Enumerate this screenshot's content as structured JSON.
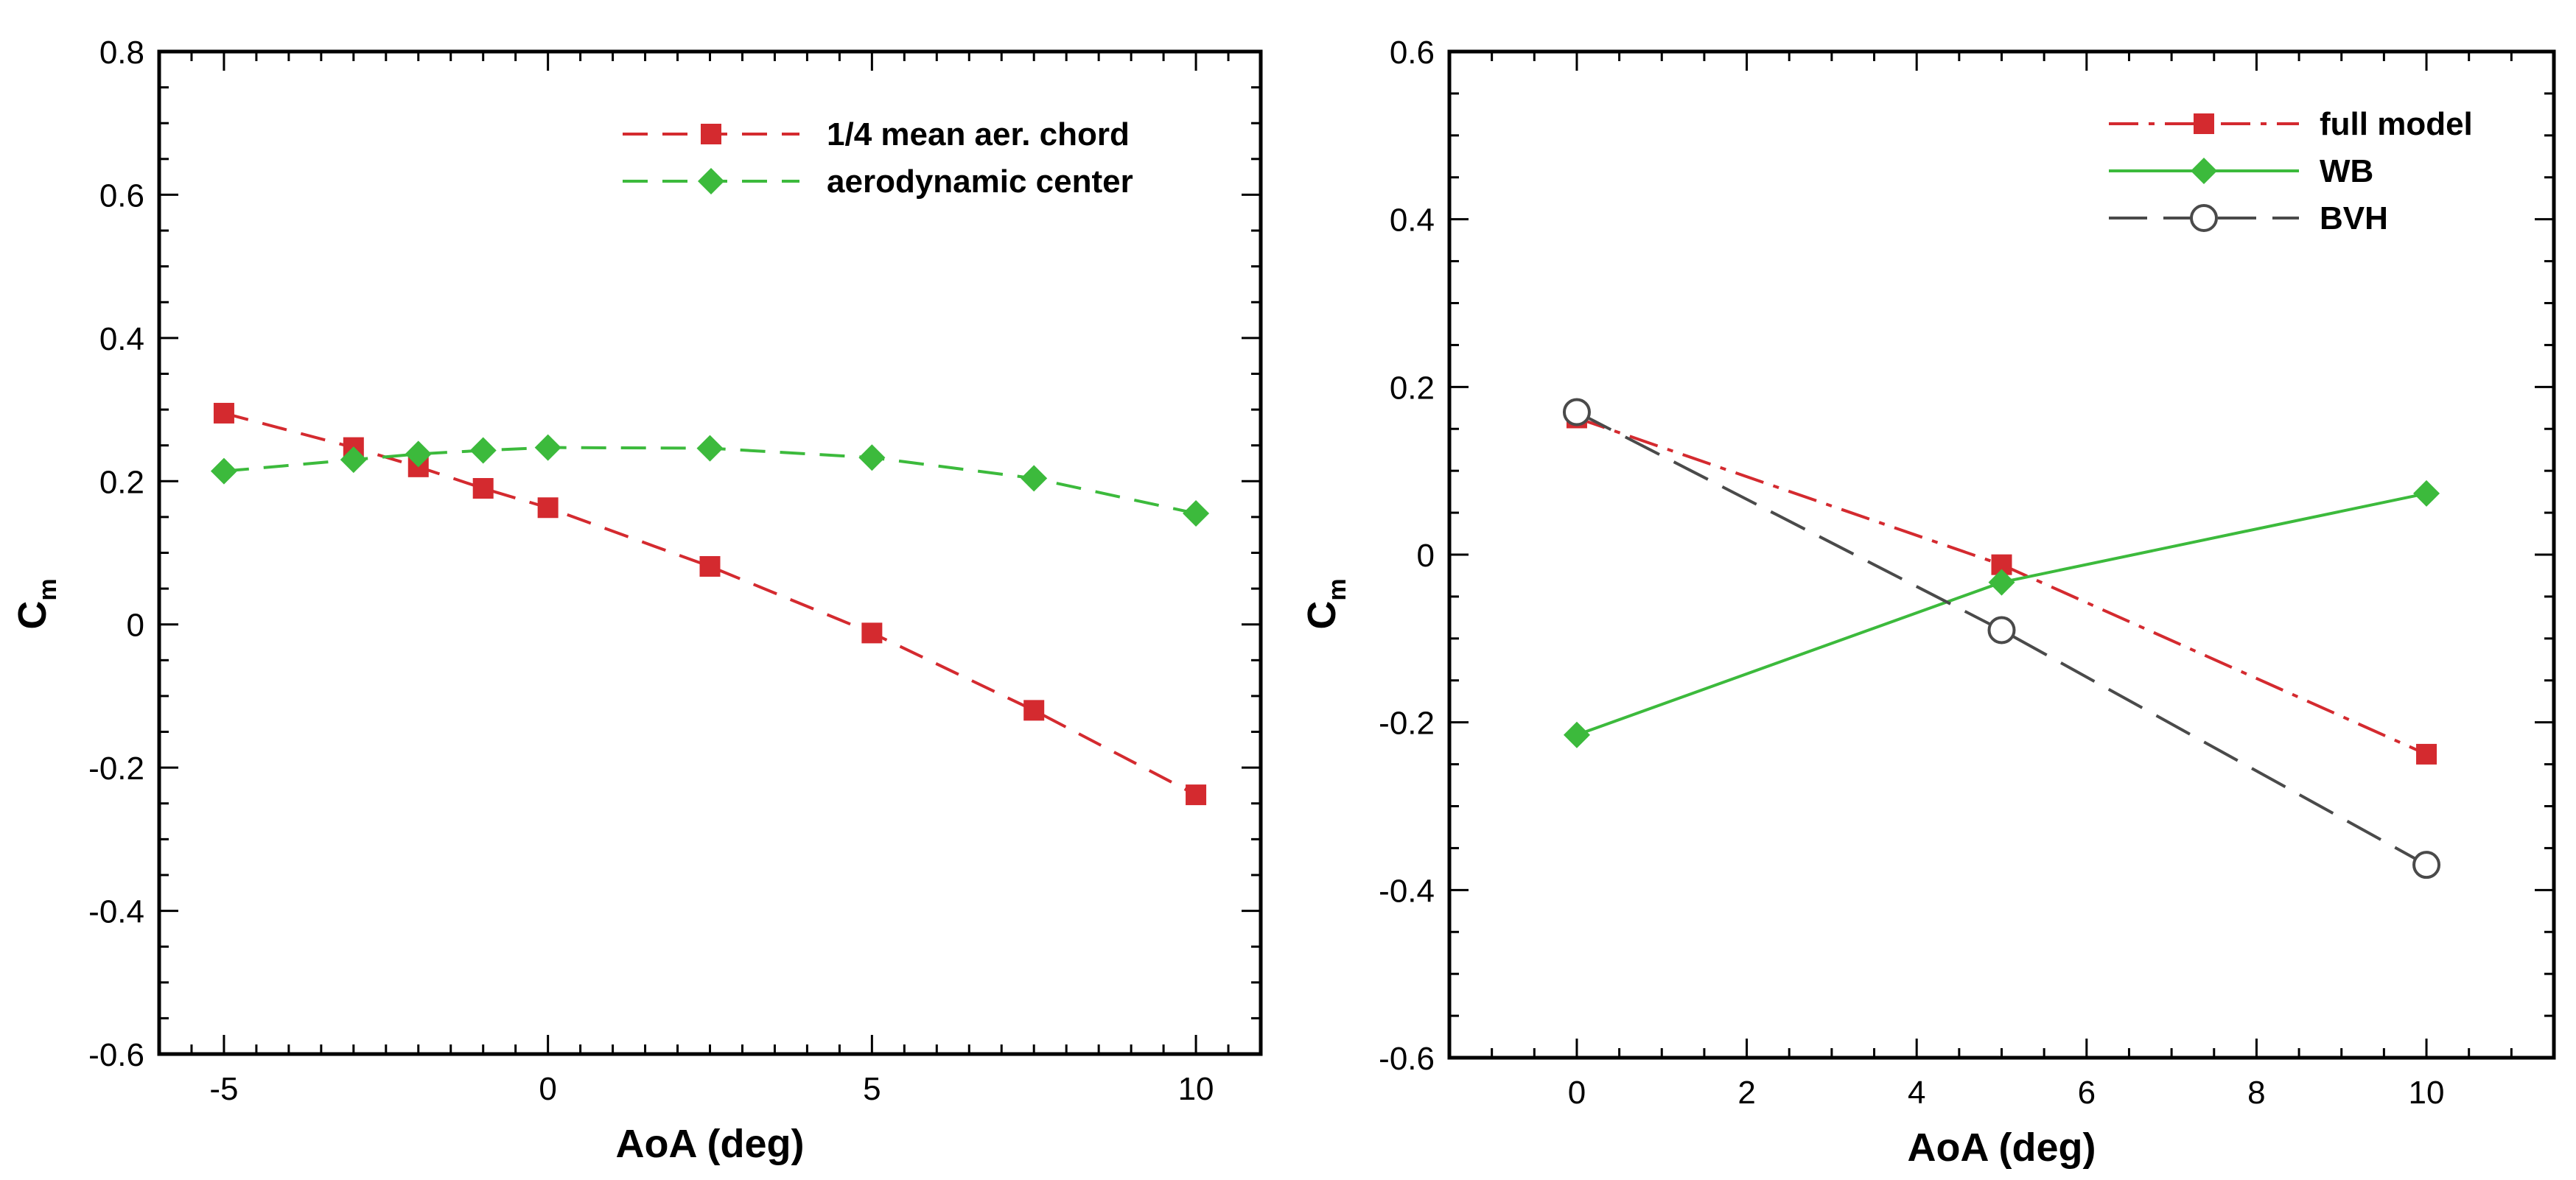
{
  "chart_data": [
    {
      "type": "line",
      "title": "",
      "xlabel": "AoA (deg)",
      "ylabel_main": "C",
      "ylabel_sub": "m",
      "xlim": [
        -6,
        11
      ],
      "ylim": [
        -0.6,
        0.8
      ],
      "xticks": [
        -5,
        0,
        5,
        10
      ],
      "xtick_labels": [
        "-5",
        "0",
        "5",
        "10"
      ],
      "yticks": [
        -0.6,
        -0.4,
        -0.2,
        0,
        0.2,
        0.4,
        0.6,
        0.8
      ],
      "ytick_labels": [
        "-0.6",
        "-0.4",
        "-0.2",
        "0",
        "0.2",
        "0.4",
        "0.6",
        "0.8"
      ],
      "grid": false,
      "legend_position": "top-right",
      "series": [
        {
          "name": "1/4 mean aer. chord",
          "color": "#d42a2f",
          "line_style": "dashed",
          "marker": "square",
          "x": [
            -5,
            -3,
            -2,
            -1,
            0,
            2.5,
            5,
            7.5,
            10
          ],
          "y": [
            0.295,
            0.247,
            0.22,
            0.19,
            0.163,
            0.081,
            -0.012,
            -0.12,
            -0.238
          ]
        },
        {
          "name": "aerodynamic center",
          "color": "#3cba3c",
          "line_style": "dashed",
          "marker": "diamond",
          "x": [
            -5,
            -3,
            -2,
            -1,
            0,
            2.5,
            5,
            7.5,
            10
          ],
          "y": [
            0.214,
            0.23,
            0.238,
            0.243,
            0.247,
            0.246,
            0.233,
            0.204,
            0.155
          ]
        }
      ]
    },
    {
      "type": "line",
      "title": "",
      "xlabel": "AoA (deg)",
      "ylabel_main": "C",
      "ylabel_sub": "m",
      "xlim": [
        -1.5,
        11.5
      ],
      "ylim": [
        -0.6,
        0.6
      ],
      "xticks": [
        0,
        2,
        4,
        6,
        8,
        10
      ],
      "xtick_labels": [
        "0",
        "2",
        "4",
        "6",
        "8",
        "10"
      ],
      "yticks": [
        -0.6,
        -0.4,
        -0.2,
        0,
        0.2,
        0.4,
        0.6
      ],
      "ytick_labels": [
        "-0.6",
        "-0.4",
        "-0.2",
        "0",
        "0.2",
        "0.4",
        "0.6"
      ],
      "grid": false,
      "legend_position": "top-right",
      "series": [
        {
          "name": "full model",
          "color": "#d42a2f",
          "line_style": "dashdot",
          "marker": "square",
          "x": [
            0,
            5,
            10
          ],
          "y": [
            0.163,
            -0.012,
            -0.238
          ]
        },
        {
          "name": "WB",
          "color": "#3cba3c",
          "line_style": "solid",
          "marker": "diamond",
          "x": [
            0,
            5,
            10
          ],
          "y": [
            -0.215,
            -0.033,
            0.073
          ]
        },
        {
          "name": "BVH",
          "color": "#4a4a4a",
          "line_style": "longdash",
          "marker": "open-circle",
          "x": [
            0,
            5,
            10
          ],
          "y": [
            0.17,
            -0.09,
            -0.37
          ]
        }
      ]
    }
  ]
}
